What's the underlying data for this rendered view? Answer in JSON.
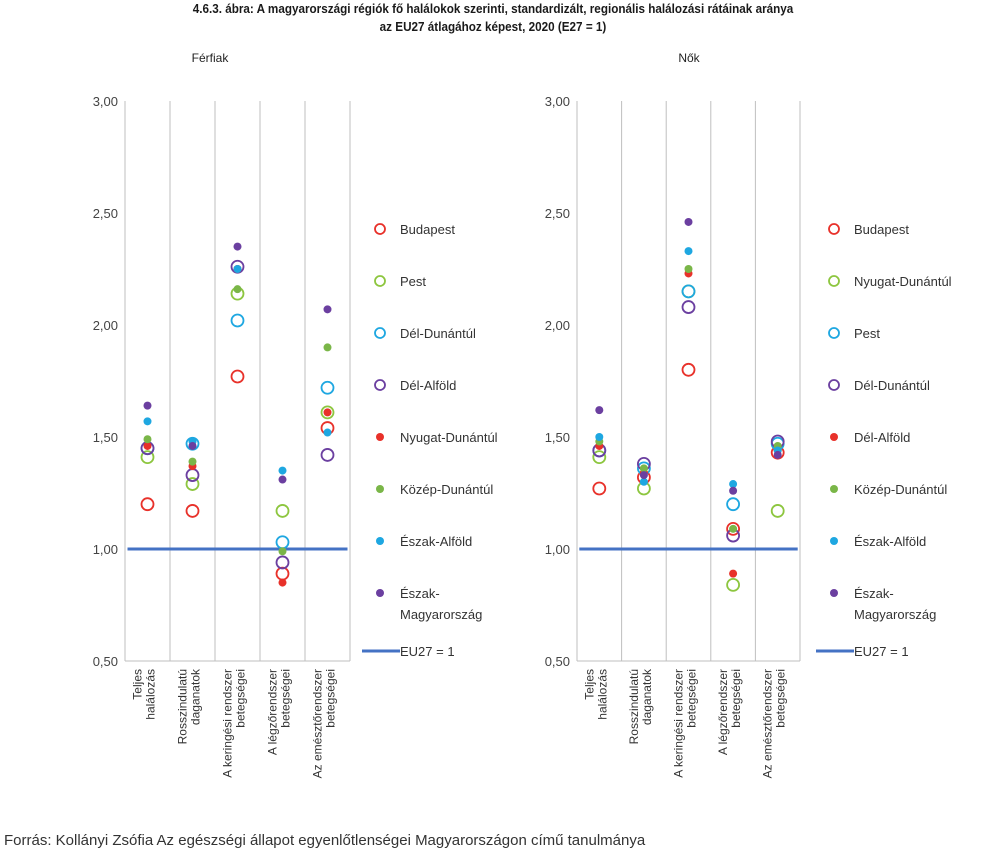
{
  "title": {
    "line1": "4.6.3. ábra: A magyarországi régiók fő halálokok szerinti, standardizált, regionális halálozási rátáinak aránya",
    "line2": "az EU27 átlagához képest, 2020 (E27 = 1)"
  },
  "source": "Forrás: Kollányi Zsófia Az egészségi állapot egyenlőtlenségei Magyarországon című tanulmánya",
  "chart_data": [
    {
      "type": "scatter",
      "panel_title": "Férfiak",
      "ylim": [
        0.5,
        3.0
      ],
      "y_ticks": [
        "0,50",
        "1,00",
        "1,50",
        "2,00",
        "2,50",
        "3,00"
      ],
      "grid": "vertical-separators",
      "legend_position": "right",
      "categories": [
        [
          "Teljes",
          "halálozás"
        ],
        [
          "Rosszindulatú",
          "daganatok"
        ],
        [
          "A keringési rendszer",
          "betegségei"
        ],
        [
          "A légzőrendszer",
          "betegségei"
        ],
        [
          "Az emésztőrendszer",
          "betegségei"
        ]
      ],
      "reference_line": {
        "name": "EU27 = 1",
        "value": 1.0,
        "color": "#4472c4"
      },
      "series": [
        {
          "name": "Budapest",
          "marker": "hollow",
          "color": "#e8312a",
          "values": [
            1.2,
            1.17,
            1.77,
            0.89,
            1.54
          ]
        },
        {
          "name": "Pest",
          "marker": "hollow",
          "color": "#8dc63f",
          "values": [
            1.41,
            1.29,
            2.14,
            1.17,
            1.61
          ]
        },
        {
          "name": "Dél-Dunántúl",
          "marker": "hollow",
          "color": "#1ea7e1",
          "values": [
            1.45,
            1.47,
            2.02,
            1.03,
            1.72
          ]
        },
        {
          "name": "Dél-Alföld",
          "marker": "hollow",
          "color": "#6b3fa0",
          "values": [
            1.45,
            1.33,
            2.26,
            0.94,
            1.42
          ]
        },
        {
          "name": "Nyugat-Dunántúl",
          "marker": "filled",
          "color": "#e8312a",
          "values": [
            1.46,
            1.37,
            2.25,
            0.85,
            1.61
          ]
        },
        {
          "name": "Közép-Dunántúl",
          "marker": "filled",
          "color": "#7ab648",
          "values": [
            1.49,
            1.39,
            2.16,
            0.99,
            1.9
          ]
        },
        {
          "name": "Észak-Alföld",
          "marker": "filled",
          "color": "#1ea7e1",
          "values": [
            1.57,
            1.48,
            2.25,
            1.35,
            1.52
          ]
        },
        {
          "name": [
            "Észak-",
            "Magyarország"
          ],
          "marker": "filled",
          "color": "#6b3fa0",
          "values": [
            1.64,
            1.46,
            2.35,
            1.31,
            2.07
          ]
        }
      ]
    },
    {
      "type": "scatter",
      "panel_title": "Nők",
      "ylim": [
        0.5,
        3.0
      ],
      "y_ticks": [
        "0,50",
        "1,00",
        "1,50",
        "2,00",
        "2,50",
        "3,00"
      ],
      "grid": "vertical-separators",
      "legend_position": "right",
      "categories": [
        [
          "Teljes",
          "halálozás"
        ],
        [
          "Rosszindulatú",
          "daganatok"
        ],
        [
          "A keringési rendszer",
          "betegségei"
        ],
        [
          "A légzőrendszer",
          "betegségei"
        ],
        [
          "Az emésztőrendszer",
          "betegségei"
        ]
      ],
      "reference_line": {
        "name": "EU27 = 1",
        "value": 1.0,
        "color": "#4472c4"
      },
      "series": [
        {
          "name": "Budapest",
          "marker": "hollow",
          "color": "#e8312a",
          "values": [
            1.27,
            1.32,
            1.8,
            1.09,
            1.43
          ]
        },
        {
          "name": "Nyugat-Dunántúl",
          "marker": "hollow",
          "color": "#8dc63f",
          "values": [
            1.41,
            1.27,
            2.15,
            0.84,
            1.17
          ]
        },
        {
          "name": "Pest",
          "marker": "hollow",
          "color": "#1ea7e1",
          "values": [
            1.44,
            1.36,
            2.15,
            1.2,
            1.47
          ]
        },
        {
          "name": "Dél-Dunántúl",
          "marker": "hollow",
          "color": "#6b3fa0",
          "values": [
            1.44,
            1.38,
            2.08,
            1.06,
            1.48
          ]
        },
        {
          "name": "Dél-Alföld",
          "marker": "filled",
          "color": "#e8312a",
          "values": [
            1.46,
            1.34,
            2.23,
            0.89,
            1.44
          ]
        },
        {
          "name": "Közép-Dunántúl",
          "marker": "filled",
          "color": "#7ab648",
          "values": [
            1.48,
            1.36,
            2.25,
            1.09,
            1.46
          ]
        },
        {
          "name": "Észak-Alföld",
          "marker": "filled",
          "color": "#1ea7e1",
          "values": [
            1.5,
            1.3,
            2.33,
            1.29,
            1.44
          ]
        },
        {
          "name": [
            "Észak-",
            "Magyarország"
          ],
          "marker": "filled",
          "color": "#6b3fa0",
          "values": [
            1.62,
            1.33,
            2.46,
            1.26,
            1.42
          ]
        }
      ]
    }
  ]
}
